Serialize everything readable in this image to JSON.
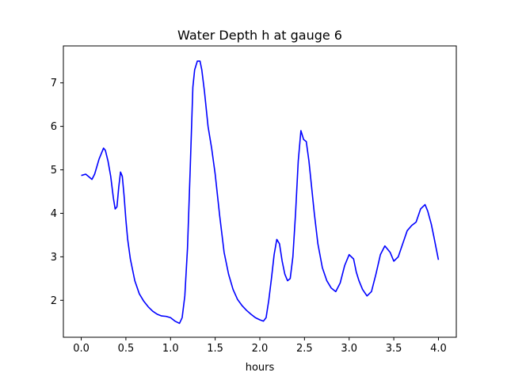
{
  "chart_data": {
    "type": "line",
    "title": "Water Depth h at gauge 6",
    "xlabel": "hours",
    "ylabel": "",
    "xlim": [
      -0.2,
      4.2
    ],
    "ylim": [
      1.15,
      7.85
    ],
    "xticks": [
      0.0,
      0.5,
      1.0,
      1.5,
      2.0,
      2.5,
      3.0,
      3.5,
      4.0
    ],
    "xtick_labels": [
      "0.0",
      "0.5",
      "1.0",
      "1.5",
      "2.0",
      "2.5",
      "3.0",
      "3.5",
      "4.0"
    ],
    "yticks": [
      2,
      3,
      4,
      5,
      6,
      7
    ],
    "ytick_labels": [
      "2",
      "3",
      "4",
      "5",
      "6",
      "7"
    ],
    "grid": false,
    "series": [
      {
        "color": "#0000ff",
        "x": [
          0.0,
          0.05,
          0.08,
          0.12,
          0.15,
          0.2,
          0.25,
          0.27,
          0.3,
          0.33,
          0.36,
          0.38,
          0.4,
          0.42,
          0.44,
          0.46,
          0.48,
          0.5,
          0.52,
          0.55,
          0.6,
          0.65,
          0.7,
          0.75,
          0.8,
          0.85,
          0.9,
          0.95,
          1.0,
          1.05,
          1.1,
          1.13,
          1.16,
          1.19,
          1.22,
          1.25,
          1.27,
          1.3,
          1.33,
          1.35,
          1.38,
          1.42,
          1.46,
          1.5,
          1.55,
          1.6,
          1.65,
          1.7,
          1.75,
          1.8,
          1.85,
          1.9,
          1.95,
          2.0,
          2.04,
          2.07,
          2.1,
          2.13,
          2.16,
          2.19,
          2.22,
          2.25,
          2.28,
          2.31,
          2.34,
          2.37,
          2.4,
          2.43,
          2.46,
          2.49,
          2.52,
          2.55,
          2.58,
          2.61,
          2.65,
          2.7,
          2.75,
          2.8,
          2.85,
          2.9,
          2.95,
          3.0,
          3.05,
          3.08,
          3.11,
          3.15,
          3.2,
          3.25,
          3.3,
          3.35,
          3.4,
          3.46,
          3.5,
          3.55,
          3.6,
          3.65,
          3.7,
          3.75,
          3.8,
          3.85,
          3.88,
          3.92,
          3.95,
          4.0
        ],
        "y": [
          4.87,
          4.9,
          4.85,
          4.78,
          4.9,
          5.25,
          5.5,
          5.45,
          5.2,
          4.85,
          4.35,
          4.1,
          4.15,
          4.6,
          4.95,
          4.85,
          4.4,
          3.85,
          3.4,
          2.95,
          2.45,
          2.15,
          1.98,
          1.85,
          1.75,
          1.68,
          1.64,
          1.63,
          1.6,
          1.52,
          1.47,
          1.6,
          2.1,
          3.2,
          5.0,
          6.9,
          7.3,
          7.5,
          7.5,
          7.3,
          6.8,
          6.0,
          5.5,
          4.9,
          3.95,
          3.1,
          2.6,
          2.25,
          2.02,
          1.88,
          1.77,
          1.68,
          1.6,
          1.55,
          1.52,
          1.6,
          2.0,
          2.5,
          3.05,
          3.4,
          3.3,
          2.9,
          2.6,
          2.45,
          2.5,
          3.0,
          4.0,
          5.2,
          5.9,
          5.7,
          5.65,
          5.2,
          4.6,
          4.0,
          3.3,
          2.75,
          2.45,
          2.28,
          2.2,
          2.4,
          2.8,
          3.05,
          2.95,
          2.65,
          2.45,
          2.25,
          2.1,
          2.2,
          2.6,
          3.05,
          3.25,
          3.1,
          2.9,
          3.0,
          3.3,
          3.6,
          3.72,
          3.8,
          4.1,
          4.2,
          4.05,
          3.75,
          3.45,
          2.93
        ]
      }
    ]
  }
}
